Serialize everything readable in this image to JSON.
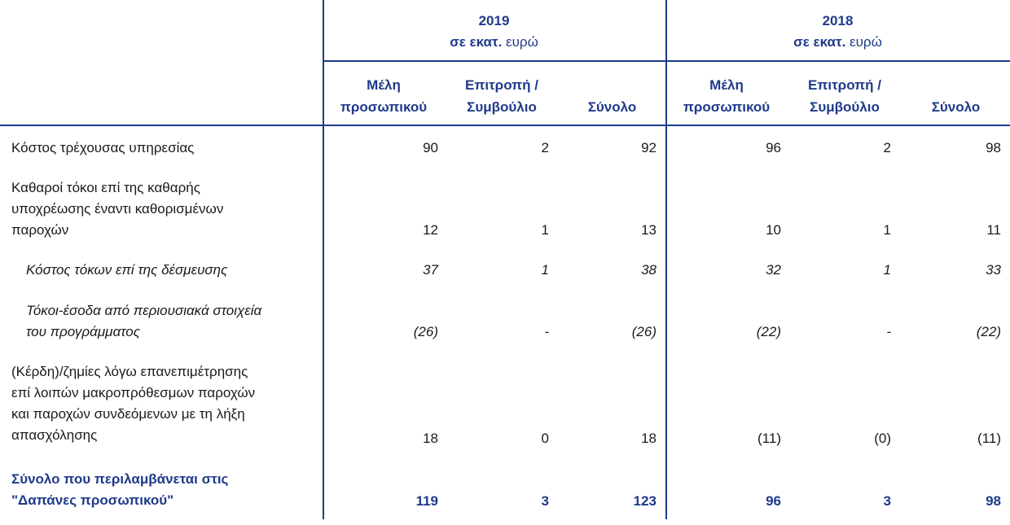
{
  "headers": {
    "year_a": "2019",
    "year_b": "2018",
    "unit_bold": "σε εκατ.",
    "unit_normal": "ευρώ",
    "col_staff": [
      "Μέλη",
      "προσωπικού"
    ],
    "col_board": [
      "Επιτροπή /",
      "Συμβούλιο"
    ],
    "col_total": "Σύνολο"
  },
  "rows": [
    {
      "label": [
        "Κόστος τρέχουσας υπηρεσίας"
      ],
      "values": [
        "90",
        "2",
        "92",
        "96",
        "2",
        "98"
      ]
    },
    {
      "label": [
        "Καθαροί τόκοι επί της καθαρής",
        "υποχρέωσης έναντι καθορισμένων",
        "παροχών"
      ],
      "values": [
        "12",
        "1",
        "13",
        "10",
        "1",
        "11"
      ]
    },
    {
      "label": [
        "Κόστος τόκων επί της δέσμευσης"
      ],
      "values": [
        "37",
        "1",
        "38",
        "32",
        "1",
        "33"
      ]
    },
    {
      "label": [
        "Τόκοι-έσοδα από περιουσιακά στοιχεία",
        "του προγράμματος"
      ],
      "values": [
        "(26)",
        "-",
        "(26)",
        "(22)",
        "-",
        "(22)"
      ]
    },
    {
      "label": [
        "(Κέρδη)/ζημίες λόγω επανεπιμέτρησης",
        "επί λοιπών μακροπρόθεσμων παροχών",
        "και παροχών συνδεόμενων με τη λήξη",
        "απασχόλησης"
      ],
      "values": [
        "18",
        "0",
        "18",
        "(11)",
        "(0)",
        "(11)"
      ]
    },
    {
      "label": [
        "Σύνολο που περιλαμβάνεται στις",
        "\"Δαπάνες προσωπικού\""
      ],
      "values": [
        "119",
        "3",
        "123",
        "96",
        "3",
        "98"
      ]
    }
  ]
}
